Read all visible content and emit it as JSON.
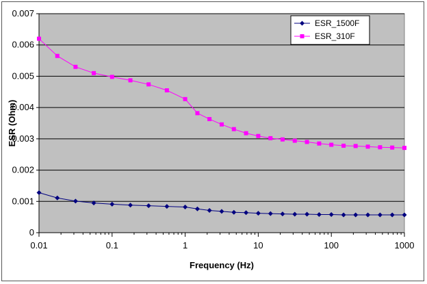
{
  "chart_data": {
    "type": "line",
    "title": "",
    "xlabel": "Frequency (Hz)",
    "ylabel": "ESR (Ohm)",
    "x_scale": "log",
    "xlim": [
      0.01,
      1000
    ],
    "ylim": [
      0,
      0.007
    ],
    "x_tick_labels": [
      "0.01",
      "0.1",
      "1",
      "10",
      "100",
      "1000"
    ],
    "y_tick_labels": [
      "0",
      "0.001",
      "0.002",
      "0.003",
      "0.004",
      "0.005",
      "0.006",
      "0.007"
    ],
    "grid": "horizontal",
    "legend_position": "top-right",
    "plot_background": "#c0c0c0",
    "series": [
      {
        "name": "ESR_1500F",
        "color": "#00007f",
        "marker": "diamond",
        "x": [
          0.01,
          0.0178,
          0.0316,
          0.0562,
          0.1,
          0.178,
          0.316,
          0.562,
          1,
          1.47,
          2.15,
          3.16,
          4.64,
          6.81,
          10,
          14.7,
          21.5,
          31.6,
          46.4,
          68.1,
          100,
          147,
          215,
          316,
          464,
          681,
          1000
        ],
        "values": [
          0.00128,
          0.00111,
          0.00101,
          0.00095,
          0.00091,
          0.00088,
          0.00086,
          0.00084,
          0.00082,
          0.00076,
          0.00071,
          0.00068,
          0.00065,
          0.00064,
          0.00062,
          0.00061,
          0.0006,
          0.00059,
          0.00059,
          0.00058,
          0.00058,
          0.00057,
          0.00057,
          0.00057,
          0.00057,
          0.00057,
          0.00057
        ]
      },
      {
        "name": "ESR_310F",
        "color": "#ff00ff",
        "marker": "square",
        "x": [
          0.01,
          0.0178,
          0.0316,
          0.0562,
          0.1,
          0.178,
          0.316,
          0.562,
          1,
          1.47,
          2.15,
          3.16,
          4.64,
          6.81,
          10,
          14.7,
          21.5,
          31.6,
          46.4,
          68.1,
          100,
          147,
          215,
          316,
          464,
          681,
          1000
        ],
        "values": [
          0.0062,
          0.00565,
          0.0053,
          0.0051,
          0.00498,
          0.00487,
          0.00474,
          0.00455,
          0.00427,
          0.00382,
          0.00363,
          0.00346,
          0.00331,
          0.00318,
          0.00309,
          0.00302,
          0.00298,
          0.00294,
          0.0029,
          0.00285,
          0.00281,
          0.00278,
          0.00277,
          0.00275,
          0.00273,
          0.00272,
          0.00271
        ]
      }
    ]
  }
}
